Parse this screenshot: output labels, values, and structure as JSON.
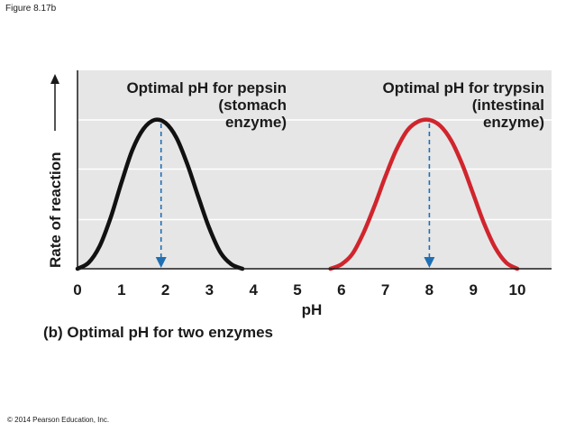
{
  "figure_label": "Figure 8.17b",
  "copyright": "© 2014 Pearson Education, Inc.",
  "caption": "(b) Optimal pH for two enzymes",
  "colors": {
    "panel": "#e6e6e6",
    "gridline": "#ffffff",
    "axis": "#1a1a1a",
    "pepsin": "#111111",
    "trypsin": "#d0252d",
    "arrow": "#1f6fb4"
  },
  "chart_data": {
    "type": "line",
    "xlabel": "pH",
    "ylabel": "Rate of reaction",
    "xlim": [
      0,
      10.5
    ],
    "ylim": [
      0,
      1.0
    ],
    "grid": true,
    "x_ticks": [
      "0",
      "1",
      "2",
      "3",
      "4",
      "5",
      "6",
      "7",
      "8",
      "9",
      "10"
    ],
    "series": [
      {
        "name": "pepsin",
        "x": [
          0.0,
          0.25,
          0.5,
          0.75,
          1.0,
          1.25,
          1.5,
          1.75,
          2.0,
          2.25,
          2.5,
          2.75,
          3.0,
          3.25,
          3.5,
          3.75
        ],
        "y": [
          0.0,
          0.04,
          0.15,
          0.34,
          0.58,
          0.8,
          0.94,
          1.0,
          0.98,
          0.88,
          0.7,
          0.48,
          0.27,
          0.11,
          0.03,
          0.0
        ]
      },
      {
        "name": "trypsin",
        "x": [
          5.75,
          6.0,
          6.25,
          6.5,
          6.75,
          7.0,
          7.25,
          7.5,
          7.75,
          8.0,
          8.25,
          8.5,
          8.75,
          9.0,
          9.25,
          9.5,
          9.75,
          10.0
        ],
        "y": [
          0.0,
          0.03,
          0.1,
          0.24,
          0.42,
          0.62,
          0.8,
          0.93,
          0.99,
          1.0,
          0.96,
          0.86,
          0.7,
          0.5,
          0.3,
          0.14,
          0.04,
          0.0
        ]
      }
    ],
    "annotations": [
      {
        "lines": [
          "Optimal pH for pepsin",
          "(stomach",
          "enzyme)"
        ],
        "optimum_x": 1.9
      },
      {
        "lines": [
          "Optimal pH for trypsin",
          "(intestinal",
          "enzyme)"
        ],
        "optimum_x": 8.0
      }
    ]
  }
}
